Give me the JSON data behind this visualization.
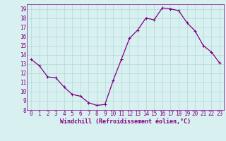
{
  "x": [
    0,
    1,
    2,
    3,
    4,
    5,
    6,
    7,
    8,
    9,
    10,
    11,
    12,
    13,
    14,
    15,
    16,
    17,
    18,
    19,
    20,
    21,
    22,
    23
  ],
  "y": [
    13.5,
    12.8,
    11.6,
    11.5,
    10.5,
    9.7,
    9.5,
    8.8,
    8.5,
    8.6,
    11.2,
    13.5,
    15.8,
    16.7,
    18.0,
    17.8,
    19.1,
    19.0,
    18.8,
    17.5,
    16.6,
    15.0,
    14.3,
    13.1
  ],
  "line_color": "#800080",
  "marker": "+",
  "marker_size": 3,
  "bg_color": "#d8f0f0",
  "grid_color": "#b0d8d8",
  "xlabel": "Windchill (Refroidissement éolien,°C)",
  "xlim": [
    -0.5,
    23.5
  ],
  "ylim": [
    8,
    19.5
  ],
  "yticks": [
    8,
    9,
    10,
    11,
    12,
    13,
    14,
    15,
    16,
    17,
    18,
    19
  ],
  "xticks": [
    0,
    1,
    2,
    3,
    4,
    5,
    6,
    7,
    8,
    9,
    10,
    11,
    12,
    13,
    14,
    15,
    16,
    17,
    18,
    19,
    20,
    21,
    22,
    23
  ],
  "tick_color": "#800080",
  "label_color": "#800080",
  "xlabel_fontsize": 6,
  "tick_fontsize": 5.5
}
